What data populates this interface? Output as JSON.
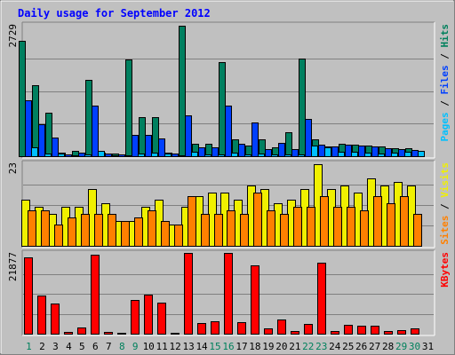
{
  "chart_data": {
    "type": "bar",
    "title": "Daily usage for September 2012",
    "days": [
      "1",
      "2",
      "3",
      "4",
      "5",
      "6",
      "7",
      "8",
      "9",
      "10",
      "11",
      "12",
      "13",
      "14",
      "15",
      "16",
      "17",
      "18",
      "19",
      "20",
      "21",
      "22",
      "23",
      "24",
      "25",
      "26",
      "27",
      "28",
      "29",
      "30",
      "31"
    ],
    "weekend_days": [
      1,
      8,
      9,
      15,
      16,
      22,
      23,
      29,
      30
    ],
    "panels": [
      {
        "id": "hits",
        "max_label": "2729",
        "ymax": 2729,
        "legend": [
          {
            "text": "Pages",
            "color": "#00c0ff"
          },
          {
            "text": " / ",
            "color": "#000000"
          },
          {
            "text": "Files",
            "color": "#0040ff"
          },
          {
            "text": " / ",
            "color": "#000000"
          },
          {
            "text": "Hits",
            "color": "#00805c"
          }
        ],
        "series": [
          {
            "color": "#008060",
            "values": [
              2420,
              1485,
              905,
              75,
              110,
              1605,
              70,
              60,
              2030,
              815,
              825,
              80,
              2729,
              255,
              255,
              1965,
              345,
              215,
              350,
              190,
              500,
              2035,
              345,
              195,
              255,
              240,
              220,
              200,
              165,
              170,
              0
            ]
          },
          {
            "color": "#0040ff",
            "values": [
              1175,
              665,
              395,
              45,
              75,
              1065,
              50,
              40,
              450,
              445,
              365,
              55,
              860,
              180,
              185,
              1050,
              255,
              710,
              145,
              280,
              155,
              785,
              240,
              205,
              240,
              225,
              205,
              165,
              140,
              130,
              0
            ]
          },
          {
            "color": "#00c0ff",
            "values": [
              190,
              55,
              50,
              20,
              30,
              105,
              25,
              15,
              60,
              70,
              50,
              20,
              90,
              30,
              30,
              80,
              30,
              55,
              40,
              30,
              40,
              215,
              180,
              85,
              85,
              65,
              60,
              65,
              95,
              120,
              0
            ]
          }
        ]
      },
      {
        "id": "visits",
        "max_label": "23",
        "ymax": 23,
        "legend": [
          {
            "text": "Sites",
            "color": "#ff8000"
          },
          {
            "text": " / ",
            "color": "#000000"
          },
          {
            "text": "Visits",
            "color": "#f0f000"
          }
        ],
        "series": [
          {
            "color": "#f0f000",
            "values": [
              13,
              11,
              9,
              11,
              11,
              16,
              12,
              7,
              7,
              11,
              13,
              6,
              11,
              14,
              15,
              15,
              13,
              17,
              16,
              12,
              13,
              16,
              23,
              16,
              17,
              15,
              19,
              17,
              18,
              17,
              0
            ]
          },
          {
            "color": "#ff8000",
            "values": [
              10,
              10,
              6,
              8,
              9,
              9,
              9,
              7,
              8,
              10,
              7,
              6,
              14,
              9,
              9,
              10,
              9,
              15,
              10,
              9,
              11,
              11,
              14,
              11,
              11,
              10,
              14,
              12,
              14,
              9,
              0
            ]
          }
        ]
      },
      {
        "id": "kbytes",
        "max_label": "21877",
        "ymax": 21877,
        "legend": [
          {
            "text": "KBytes",
            "color": "#ff0000"
          }
        ],
        "series": [
          {
            "color": "#ff0000",
            "values": [
              21000,
              10500,
              8300,
              450,
              1800,
              21700,
              450,
              300,
              9200,
              10600,
              8400,
              300,
              22000,
              3000,
              3400,
              22000,
              3100,
              18800,
              1500,
              4000,
              800,
              2600,
              19500,
              650,
              2500,
              2300,
              2200,
              700,
              1000,
              1500,
              0
            ]
          }
        ]
      }
    ]
  }
}
